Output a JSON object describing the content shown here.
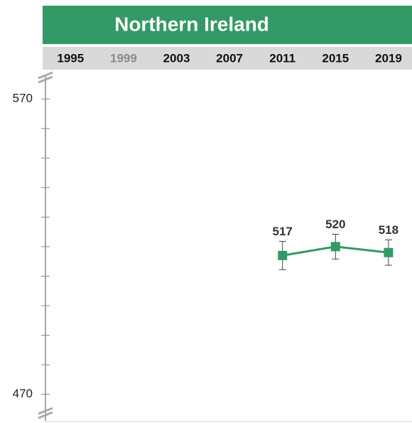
{
  "chart_data": {
    "type": "line",
    "title": "Northern Ireland",
    "categories": [
      "1995",
      "1999",
      "2003",
      "2007",
      "2011",
      "2015",
      "2019"
    ],
    "category_colors": [
      "#111111",
      "#8a8a8a",
      "#111111",
      "#111111",
      "#111111",
      "#111111",
      "#111111"
    ],
    "series": [
      {
        "name": "Northern Ireland",
        "color": "#339966",
        "values": [
          null,
          null,
          null,
          null,
          517,
          520,
          518
        ],
        "errors": [
          null,
          null,
          null,
          null,
          4.8,
          4.2,
          4.3
        ]
      }
    ],
    "ylim": [
      461,
      578
    ],
    "yticks": [
      470,
      570
    ],
    "minor_yticks": [
      480,
      490,
      500,
      510,
      520,
      530,
      540,
      550,
      560
    ],
    "header_color": "#339966",
    "band_color": "#d9d9d9"
  }
}
